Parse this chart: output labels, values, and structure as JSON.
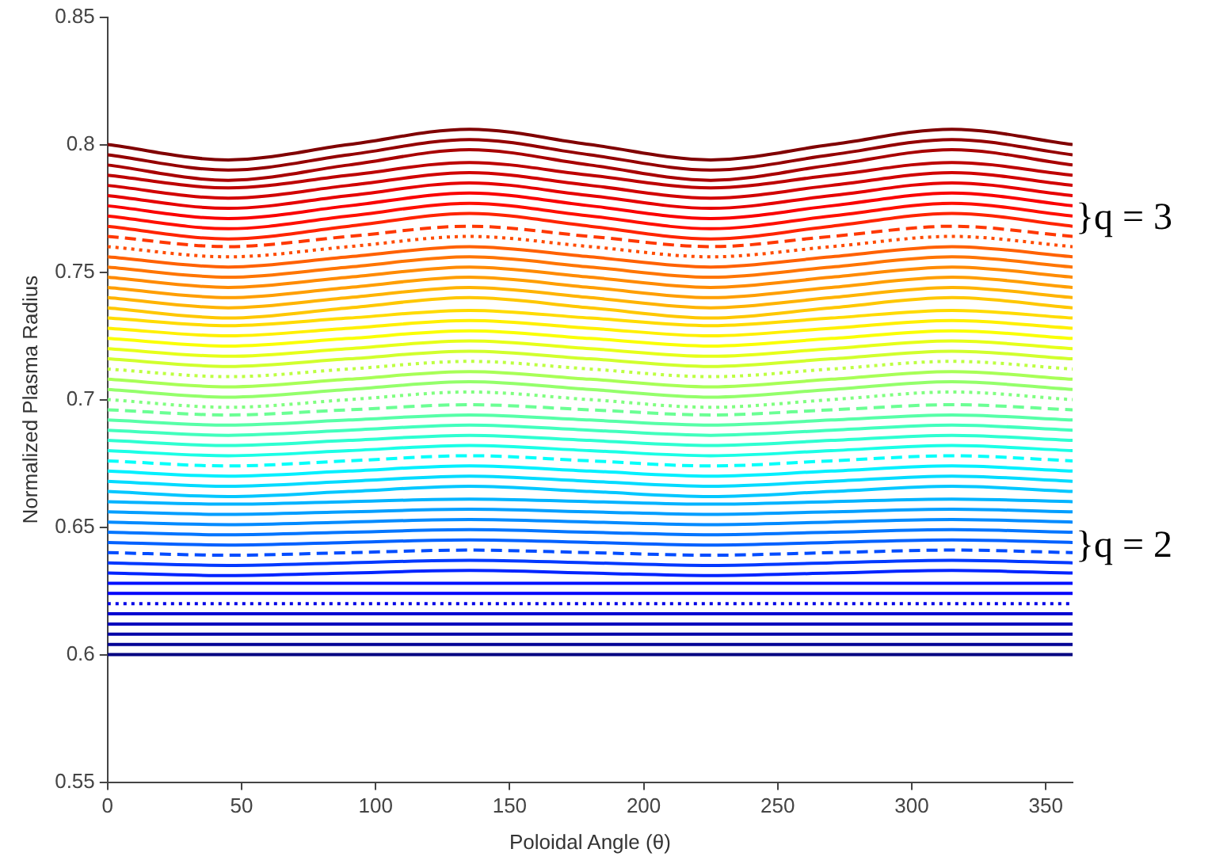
{
  "chart_data": {
    "type": "line",
    "xlabel": "Poloidal Angle (θ)",
    "ylabel": "Normalized Plasma Radius",
    "xlim": [
      0,
      360
    ],
    "ylim": [
      0.55,
      0.85
    ],
    "xticks": [
      0,
      50,
      100,
      150,
      200,
      250,
      300,
      350
    ],
    "yticks": [
      0.55,
      0.6,
      0.65,
      0.7,
      0.75,
      0.8,
      0.85
    ],
    "grid": false,
    "legend": false,
    "marker": "none",
    "line_style": "solid",
    "annotations": [
      "}q = 3",
      "}q = 2"
    ],
    "x": [
      0,
      45,
      90,
      135,
      180,
      225,
      270,
      315,
      360
    ],
    "series": [
      {
        "color": "#000080",
        "values": [
          0.6,
          0.6,
          0.6,
          0.6,
          0.6,
          0.6,
          0.6,
          0.6,
          0.6
        ]
      },
      {
        "color": "#000094",
        "values": [
          0.604,
          0.604,
          0.604,
          0.604,
          0.604,
          0.604,
          0.604,
          0.604,
          0.604
        ]
      },
      {
        "color": "#0000a8",
        "values": [
          0.608,
          0.608,
          0.608,
          0.608,
          0.608,
          0.608,
          0.608,
          0.608,
          0.608
        ]
      },
      {
        "color": "#0000bd",
        "values": [
          0.612,
          0.612,
          0.612,
          0.612,
          0.612,
          0.612,
          0.612,
          0.612,
          0.612
        ]
      },
      {
        "color": "#0000d1",
        "values": [
          0.616,
          0.616,
          0.616,
          0.616,
          0.616,
          0.616,
          0.616,
          0.616,
          0.616
        ]
      },
      {
        "color": "#0000e6",
        "line_style": "dotted",
        "values": [
          0.62,
          0.62,
          0.62,
          0.62,
          0.62,
          0.62,
          0.62,
          0.62,
          0.62
        ]
      },
      {
        "color": "#0000fa",
        "values": [
          0.624,
          0.624,
          0.624,
          0.624,
          0.624,
          0.624,
          0.624,
          0.624,
          0.624
        ]
      },
      {
        "color": "#000fff",
        "values": [
          0.628,
          0.628,
          0.628,
          0.628,
          0.628,
          0.628,
          0.628,
          0.628,
          0.628
        ]
      },
      {
        "color": "#0024ff",
        "values": [
          0.632,
          0.631,
          0.632,
          0.633,
          0.632,
          0.631,
          0.632,
          0.633,
          0.632
        ]
      },
      {
        "color": "#0038ff",
        "values": [
          0.636,
          0.635,
          0.636,
          0.637,
          0.636,
          0.635,
          0.636,
          0.637,
          0.636
        ]
      },
      {
        "color": "#004cff",
        "line_style": "dashed",
        "values": [
          0.64,
          0.639,
          0.64,
          0.641,
          0.64,
          0.639,
          0.64,
          0.641,
          0.64
        ]
      },
      {
        "color": "#0061ff",
        "values": [
          0.644,
          0.643,
          0.644,
          0.645,
          0.644,
          0.643,
          0.644,
          0.645,
          0.644
        ]
      },
      {
        "color": "#0075ff",
        "values": [
          0.648,
          0.647,
          0.648,
          0.649,
          0.648,
          0.647,
          0.648,
          0.649,
          0.648
        ]
      },
      {
        "color": "#008aff",
        "values": [
          0.652,
          0.651,
          0.652,
          0.653,
          0.652,
          0.651,
          0.652,
          0.653,
          0.652
        ]
      },
      {
        "color": "#009eff",
        "values": [
          0.656,
          0.655,
          0.656,
          0.657,
          0.656,
          0.655,
          0.656,
          0.657,
          0.656
        ]
      },
      {
        "color": "#00b3ff",
        "values": [
          0.66,
          0.659,
          0.66,
          0.661,
          0.66,
          0.659,
          0.66,
          0.661,
          0.66
        ]
      },
      {
        "color": "#00c7ff",
        "values": [
          0.664,
          0.662,
          0.664,
          0.666,
          0.664,
          0.662,
          0.664,
          0.666,
          0.664
        ]
      },
      {
        "color": "#00dbff",
        "values": [
          0.668,
          0.666,
          0.668,
          0.67,
          0.668,
          0.666,
          0.668,
          0.67,
          0.668
        ]
      },
      {
        "color": "#00f0ff",
        "values": [
          0.672,
          0.67,
          0.672,
          0.674,
          0.672,
          0.67,
          0.672,
          0.674,
          0.672
        ]
      },
      {
        "color": "#05fffa",
        "line_style": "dashed",
        "values": [
          0.676,
          0.674,
          0.676,
          0.678,
          0.676,
          0.674,
          0.676,
          0.678,
          0.676
        ]
      },
      {
        "color": "#1affe6",
        "values": [
          0.68,
          0.678,
          0.68,
          0.682,
          0.68,
          0.678,
          0.68,
          0.682,
          0.68
        ]
      },
      {
        "color": "#2effd1",
        "values": [
          0.684,
          0.682,
          0.684,
          0.686,
          0.684,
          0.682,
          0.684,
          0.686,
          0.684
        ]
      },
      {
        "color": "#42ffbd",
        "values": [
          0.688,
          0.686,
          0.688,
          0.69,
          0.688,
          0.686,
          0.688,
          0.69,
          0.688
        ]
      },
      {
        "color": "#57ffa8",
        "values": [
          0.692,
          0.69,
          0.692,
          0.694,
          0.692,
          0.69,
          0.692,
          0.694,
          0.692
        ]
      },
      {
        "color": "#6bff94",
        "line_style": "dashed",
        "values": [
          0.696,
          0.694,
          0.696,
          0.698,
          0.696,
          0.694,
          0.696,
          0.698,
          0.696
        ]
      },
      {
        "color": "#80ff80",
        "line_style": "dotted",
        "values": [
          0.7,
          0.697,
          0.7,
          0.703,
          0.7,
          0.697,
          0.7,
          0.703,
          0.7
        ]
      },
      {
        "color": "#94ff6b",
        "values": [
          0.704,
          0.701,
          0.704,
          0.707,
          0.704,
          0.701,
          0.704,
          0.707,
          0.704
        ]
      },
      {
        "color": "#a8ff57",
        "values": [
          0.708,
          0.705,
          0.708,
          0.711,
          0.708,
          0.705,
          0.708,
          0.711,
          0.708
        ]
      },
      {
        "color": "#bdff42",
        "line_style": "dotted",
        "values": [
          0.712,
          0.709,
          0.712,
          0.715,
          0.712,
          0.709,
          0.712,
          0.715,
          0.712
        ]
      },
      {
        "color": "#d1ff2e",
        "values": [
          0.716,
          0.713,
          0.716,
          0.719,
          0.716,
          0.713,
          0.716,
          0.719,
          0.716
        ]
      },
      {
        "color": "#e6ff1a",
        "values": [
          0.72,
          0.717,
          0.72,
          0.723,
          0.72,
          0.717,
          0.72,
          0.723,
          0.72
        ]
      },
      {
        "color": "#faff05",
        "values": [
          0.724,
          0.721,
          0.724,
          0.727,
          0.724,
          0.721,
          0.724,
          0.727,
          0.724
        ]
      },
      {
        "color": "#fff000",
        "values": [
          0.728,
          0.725,
          0.728,
          0.731,
          0.728,
          0.725,
          0.728,
          0.731,
          0.728
        ]
      },
      {
        "color": "#ffdb00",
        "values": [
          0.732,
          0.729,
          0.732,
          0.735,
          0.732,
          0.729,
          0.732,
          0.735,
          0.732
        ]
      },
      {
        "color": "#ffc700",
        "values": [
          0.736,
          0.732,
          0.736,
          0.74,
          0.736,
          0.732,
          0.736,
          0.74,
          0.736
        ]
      },
      {
        "color": "#ffb300",
        "values": [
          0.74,
          0.736,
          0.74,
          0.744,
          0.74,
          0.736,
          0.74,
          0.744,
          0.74
        ]
      },
      {
        "color": "#ff9e00",
        "values": [
          0.744,
          0.74,
          0.744,
          0.748,
          0.744,
          0.74,
          0.744,
          0.748,
          0.744
        ]
      },
      {
        "color": "#ff8a00",
        "values": [
          0.748,
          0.744,
          0.748,
          0.752,
          0.748,
          0.744,
          0.748,
          0.752,
          0.748
        ]
      },
      {
        "color": "#ff7500",
        "values": [
          0.752,
          0.748,
          0.752,
          0.756,
          0.752,
          0.748,
          0.752,
          0.756,
          0.752
        ]
      },
      {
        "color": "#ff6100",
        "values": [
          0.756,
          0.752,
          0.756,
          0.76,
          0.756,
          0.752,
          0.756,
          0.76,
          0.756
        ]
      },
      {
        "color": "#ff4c00",
        "line_style": "dotted",
        "values": [
          0.76,
          0.756,
          0.76,
          0.764,
          0.76,
          0.756,
          0.76,
          0.764,
          0.76
        ]
      },
      {
        "color": "#ff3800",
        "line_style": "dashed",
        "values": [
          0.764,
          0.76,
          0.764,
          0.768,
          0.764,
          0.76,
          0.764,
          0.768,
          0.764
        ]
      },
      {
        "color": "#ff2400",
        "values": [
          0.768,
          0.763,
          0.768,
          0.773,
          0.768,
          0.763,
          0.768,
          0.773,
          0.768
        ]
      },
      {
        "color": "#ff0f00",
        "values": [
          0.772,
          0.767,
          0.772,
          0.777,
          0.772,
          0.767,
          0.772,
          0.777,
          0.772
        ]
      },
      {
        "color": "#fa0000",
        "values": [
          0.776,
          0.771,
          0.776,
          0.781,
          0.776,
          0.771,
          0.776,
          0.781,
          0.776
        ]
      },
      {
        "color": "#e60000",
        "values": [
          0.78,
          0.775,
          0.78,
          0.785,
          0.78,
          0.775,
          0.78,
          0.785,
          0.78
        ]
      },
      {
        "color": "#d10000",
        "values": [
          0.784,
          0.779,
          0.784,
          0.789,
          0.784,
          0.779,
          0.784,
          0.789,
          0.784
        ]
      },
      {
        "color": "#bd0000",
        "values": [
          0.788,
          0.783,
          0.788,
          0.793,
          0.788,
          0.783,
          0.788,
          0.793,
          0.788
        ]
      },
      {
        "color": "#a80000",
        "values": [
          0.792,
          0.786,
          0.792,
          0.798,
          0.792,
          0.786,
          0.792,
          0.798,
          0.792
        ]
      },
      {
        "color": "#940000",
        "values": [
          0.796,
          0.79,
          0.796,
          0.802,
          0.796,
          0.79,
          0.796,
          0.802,
          0.796
        ]
      },
      {
        "color": "#800000",
        "values": [
          0.8,
          0.794,
          0.8,
          0.806,
          0.8,
          0.794,
          0.8,
          0.806,
          0.8
        ]
      }
    ]
  }
}
